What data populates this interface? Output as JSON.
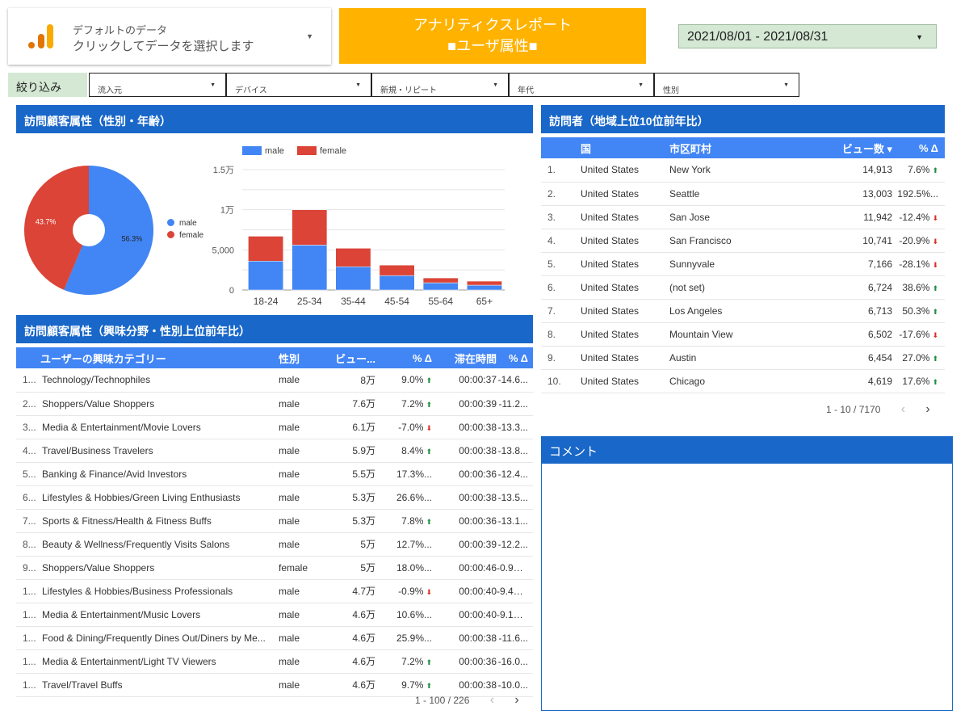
{
  "datasource": {
    "line1": "デフォルトのデータ",
    "line2": "クリックしてデータを選択します",
    "icon": "analytics-logo-icon"
  },
  "banner": {
    "line1": "アナリティクスレポート",
    "line2": "■ユーザ属性■",
    "color": "#ffb300"
  },
  "date_range": "2021/08/01 - 2021/08/31",
  "filters": {
    "label": "絞り込み",
    "items": [
      "流入元",
      "デバイス",
      "新規・リピート",
      "年代",
      "性別"
    ]
  },
  "section_gender_age": {
    "title": "訪問顧客属性（性別・年齢）"
  },
  "section_interest": {
    "title": "訪問顧客属性（興味分野・性別上位前年比）"
  },
  "section_region": {
    "title": "訪問者（地域上位10位前年比）"
  },
  "comment": {
    "title": "コメント"
  },
  "colors": {
    "male": "#4285f4",
    "female": "#db4437",
    "header": "#1967c8",
    "table_header": "#4285f4"
  },
  "chart_data": [
    {
      "type": "pie",
      "labels": [
        "male",
        "female"
      ],
      "values": [
        56.3,
        43.7
      ],
      "value_labels": [
        "56.3%",
        "43.7%"
      ],
      "donut": true,
      "legend": "right"
    },
    {
      "type": "bar",
      "stacked": true,
      "categories": [
        "18-24",
        "25-34",
        "35-44",
        "45-54",
        "55-64",
        "65+"
      ],
      "series": [
        {
          "name": "male",
          "values": [
            3600,
            5600,
            2900,
            1800,
            900,
            600
          ]
        },
        {
          "name": "female",
          "values": [
            3100,
            4400,
            2300,
            1300,
            600,
            500
          ]
        }
      ],
      "yticks": [
        "0",
        "5,000",
        "1万",
        "1.5万"
      ],
      "ylim": [
        0,
        15000
      ],
      "legend": "top",
      "grid": true
    }
  ],
  "interest_table": {
    "headers": [
      "ユーザーの興味カテゴリー",
      "性別",
      "ビュー...",
      "% Δ",
      "滞在時間",
      "% Δ"
    ],
    "rows": [
      {
        "n": "1...",
        "cat": "Technology/Technophiles",
        "sex": "male",
        "views": "8万",
        "d1": "9.0%",
        "d1dir": "up",
        "time": "00:00:37",
        "d2": "-14.6..."
      },
      {
        "n": "2...",
        "cat": "Shoppers/Value Shoppers",
        "sex": "male",
        "views": "7.6万",
        "d1": "7.2%",
        "d1dir": "up",
        "time": "00:00:39",
        "d2": "-11.2..."
      },
      {
        "n": "3...",
        "cat": "Media & Entertainment/Movie Lovers",
        "sex": "male",
        "views": "6.1万",
        "d1": "-7.0%",
        "d1dir": "down",
        "time": "00:00:38",
        "d2": "-13.3..."
      },
      {
        "n": "4...",
        "cat": "Travel/Business Travelers",
        "sex": "male",
        "views": "5.9万",
        "d1": "8.4%",
        "d1dir": "up",
        "time": "00:00:38",
        "d2": "-13.8..."
      },
      {
        "n": "5...",
        "cat": "Banking & Finance/Avid Investors",
        "sex": "male",
        "views": "5.5万",
        "d1": "17.3%...",
        "d1dir": "",
        "time": "00:00:36",
        "d2": "-12.4..."
      },
      {
        "n": "6...",
        "cat": "Lifestyles & Hobbies/Green Living Enthusiasts",
        "sex": "male",
        "views": "5.3万",
        "d1": "26.6%...",
        "d1dir": "",
        "time": "00:00:38",
        "d2": "-13.5..."
      },
      {
        "n": "7...",
        "cat": "Sports & Fitness/Health & Fitness Buffs",
        "sex": "male",
        "views": "5.3万",
        "d1": "7.8%",
        "d1dir": "up",
        "time": "00:00:36",
        "d2": "-13.1..."
      },
      {
        "n": "8...",
        "cat": "Beauty & Wellness/Frequently Visits Salons",
        "sex": "male",
        "views": "5万",
        "d1": "12.7%...",
        "d1dir": "",
        "time": "00:00:39",
        "d2": "-12.2..."
      },
      {
        "n": "9...",
        "cat": "Shoppers/Value Shoppers",
        "sex": "female",
        "views": "5万",
        "d1": "18.0%...",
        "d1dir": "",
        "time": "00:00:46",
        "d2": "-0.9%",
        "d2dir": "down"
      },
      {
        "n": "1...",
        "cat": "Lifestyles & Hobbies/Business Professionals",
        "sex": "male",
        "views": "4.7万",
        "d1": "-0.9%",
        "d1dir": "down",
        "time": "00:00:40",
        "d2": "-9.4%",
        "d2dir": "down"
      },
      {
        "n": "1...",
        "cat": "Media & Entertainment/Music Lovers",
        "sex": "male",
        "views": "4.6万",
        "d1": "10.6%...",
        "d1dir": "",
        "time": "00:00:40",
        "d2": "-9.1%",
        "d2dir": "down"
      },
      {
        "n": "1...",
        "cat": "Food & Dining/Frequently Dines Out/Diners by Me...",
        "sex": "male",
        "views": "4.6万",
        "d1": "25.9%...",
        "d1dir": "",
        "time": "00:00:38",
        "d2": "-11.6..."
      },
      {
        "n": "1...",
        "cat": "Media & Entertainment/Light TV Viewers",
        "sex": "male",
        "views": "4.6万",
        "d1": "7.2%",
        "d1dir": "up",
        "time": "00:00:36",
        "d2": "-16.0..."
      },
      {
        "n": "1...",
        "cat": "Travel/Travel Buffs",
        "sex": "male",
        "views": "4.6万",
        "d1": "9.7%",
        "d1dir": "up",
        "time": "00:00:38",
        "d2": "-10.0..."
      }
    ],
    "pager": "1 - 100 / 226"
  },
  "region_table": {
    "headers": [
      "国",
      "市区町村",
      "ビュー数 ▾",
      "% Δ"
    ],
    "rows": [
      {
        "n": "1.",
        "country": "United States",
        "city": "New York",
        "views": "14,913",
        "d": "7.6%",
        "dir": "up"
      },
      {
        "n": "2.",
        "country": "United States",
        "city": "Seattle",
        "views": "13,003",
        "d": "192.5%...",
        "dir": ""
      },
      {
        "n": "3.",
        "country": "United States",
        "city": "San Jose",
        "views": "11,942",
        "d": "-12.4%",
        "dir": "down"
      },
      {
        "n": "4.",
        "country": "United States",
        "city": "San Francisco",
        "views": "10,741",
        "d": "-20.9%",
        "dir": "down"
      },
      {
        "n": "5.",
        "country": "United States",
        "city": "Sunnyvale",
        "views": "7,166",
        "d": "-28.1%",
        "dir": "down"
      },
      {
        "n": "6.",
        "country": "United States",
        "city": "(not set)",
        "views": "6,724",
        "d": "38.6%",
        "dir": "up"
      },
      {
        "n": "7.",
        "country": "United States",
        "city": "Los Angeles",
        "views": "6,713",
        "d": "50.3%",
        "dir": "up"
      },
      {
        "n": "8.",
        "country": "United States",
        "city": "Mountain View",
        "views": "6,502",
        "d": "-17.6%",
        "dir": "down"
      },
      {
        "n": "9.",
        "country": "United States",
        "city": "Austin",
        "views": "6,454",
        "d": "27.0%",
        "dir": "up"
      },
      {
        "n": "10.",
        "country": "United States",
        "city": "Chicago",
        "views": "4,619",
        "d": "17.6%",
        "dir": "up"
      }
    ],
    "pager": "1 - 10 / 7170"
  }
}
